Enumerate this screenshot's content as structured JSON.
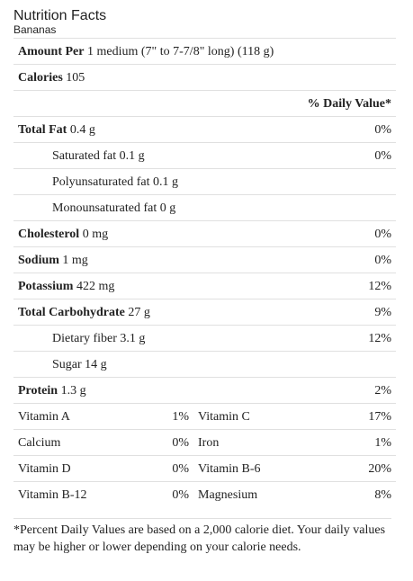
{
  "title": "Nutrition Facts",
  "subtitle": "Bananas",
  "serving": {
    "label": "Amount Per",
    "value": "1 medium (7\" to 7-7/8\" long) (118 g)"
  },
  "calories": {
    "label": "Calories",
    "value": "105"
  },
  "dv_header": "% Daily Value*",
  "nutrients": [
    {
      "label": "Total Fat",
      "amount": "0.4 g",
      "dv": "0%"
    },
    {
      "label": "Saturated fat",
      "amount": "0.1 g",
      "dv": "0%"
    },
    {
      "label": "Polyunsaturated fat",
      "amount": "0.1 g",
      "dv": ""
    },
    {
      "label": "Monounsaturated fat",
      "amount": "0 g",
      "dv": ""
    },
    {
      "label": "Cholesterol",
      "amount": "0 mg",
      "dv": "0%"
    },
    {
      "label": "Sodium",
      "amount": "1 mg",
      "dv": "0%"
    },
    {
      "label": "Potassium",
      "amount": "422 mg",
      "dv": "12%"
    },
    {
      "label": "Total Carbohydrate",
      "amount": "27 g",
      "dv": "9%"
    },
    {
      "label": "Dietary fiber",
      "amount": "3.1 g",
      "dv": "12%"
    },
    {
      "label": "Sugar",
      "amount": "14 g",
      "dv": ""
    },
    {
      "label": "Protein",
      "amount": "1.3 g",
      "dv": "2%"
    }
  ],
  "vitamins": [
    {
      "name1": "Vitamin A",
      "dv1": "1%",
      "name2": "Vitamin C",
      "dv2": "17%"
    },
    {
      "name1": "Calcium",
      "dv1": "0%",
      "name2": "Iron",
      "dv2": "1%"
    },
    {
      "name1": "Vitamin D",
      "dv1": "0%",
      "name2": "Vitamin B-6",
      "dv2": "20%"
    },
    {
      "name1": "Vitamin B-12",
      "dv1": "0%",
      "name2": "Magnesium",
      "dv2": "8%"
    }
  ],
  "footnote": "*Percent Daily Values are based on a 2,000 calorie diet. Your daily values may be higher or lower depending on your calorie needs."
}
